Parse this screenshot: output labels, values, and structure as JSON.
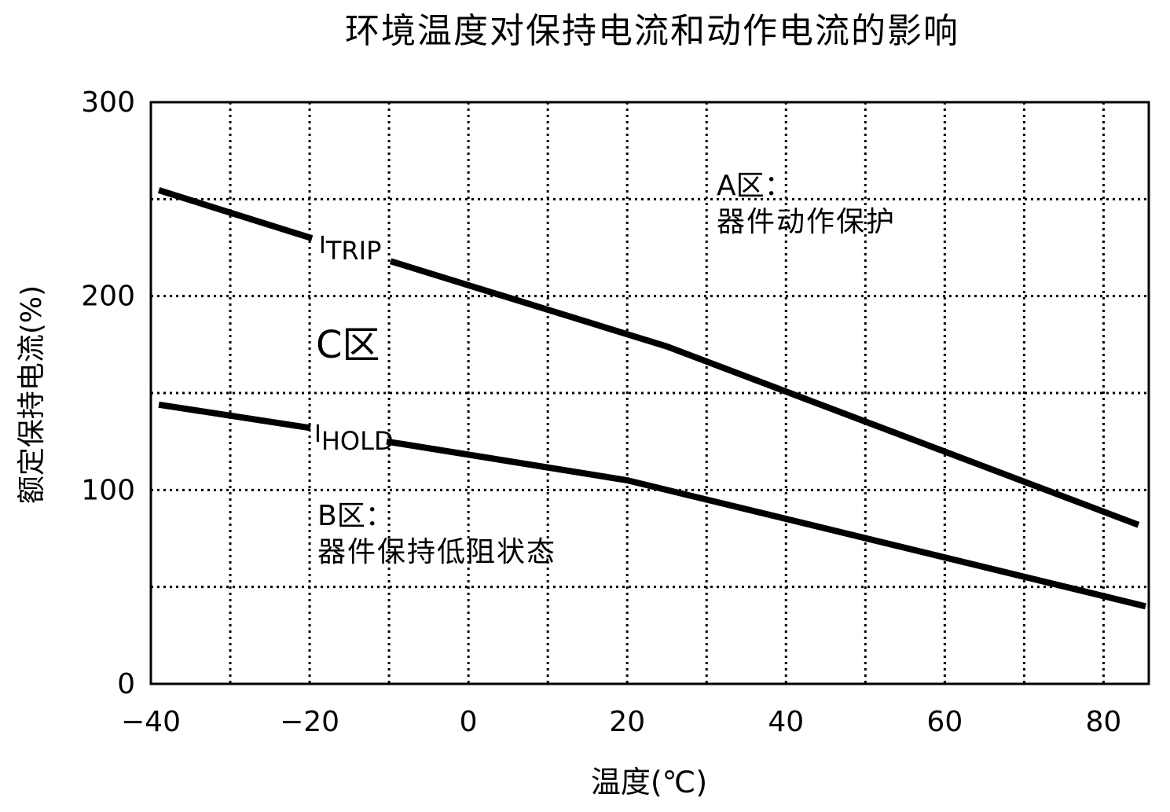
{
  "chart_data": {
    "type": "line",
    "title": "环境温度对保持电流和动作电流的影响",
    "xlabel": "温度(℃)",
    "ylabel": "额定保持电流(%)",
    "xlim": [
      -40,
      85.7
    ],
    "ylim": [
      0,
      300
    ],
    "x_ticks": [
      -40,
      -20,
      0,
      20,
      40,
      60,
      80
    ],
    "x_tick_labels": [
      "−40",
      "−20",
      "0",
      "20",
      "40",
      "60",
      "80"
    ],
    "y_ticks": [
      0,
      100,
      200,
      300
    ],
    "y_tick_labels": [
      "0",
      "100",
      "200",
      "300"
    ],
    "grid": true,
    "grid_style": "dotted",
    "x_grid": [
      -30,
      -20,
      -10,
      0,
      10,
      20,
      30,
      40,
      50,
      60,
      70,
      80
    ],
    "y_grid": [
      50,
      100,
      150,
      200,
      250
    ],
    "line_color": "#000000",
    "series": [
      {
        "name": "I_TRIP",
        "label_main": "I",
        "label_sub": "TRIP",
        "segments": [
          {
            "x": [
              -39,
              -19.7
            ],
            "y": [
              254.6,
              229.8
            ]
          },
          {
            "x": [
              -9.8,
              25,
              84.4
            ],
            "y": [
              218,
              174,
              82
            ]
          }
        ]
      },
      {
        "name": "I_HOLD",
        "label_main": "I",
        "label_sub": "HOLD",
        "segments": [
          {
            "x": [
              -39,
              -19.9
            ],
            "y": [
              144,
              132
            ]
          },
          {
            "x": [
              -10.3,
              20,
              85.3
            ],
            "y": [
              125,
              105,
              40
            ]
          }
        ]
      }
    ],
    "annotations": {
      "zone_a_title": "A区：",
      "zone_a_desc": "器件动作保护",
      "zone_b_title": "B区：",
      "zone_b_desc": "器件保持低阻状态",
      "zone_c": "C区"
    }
  }
}
